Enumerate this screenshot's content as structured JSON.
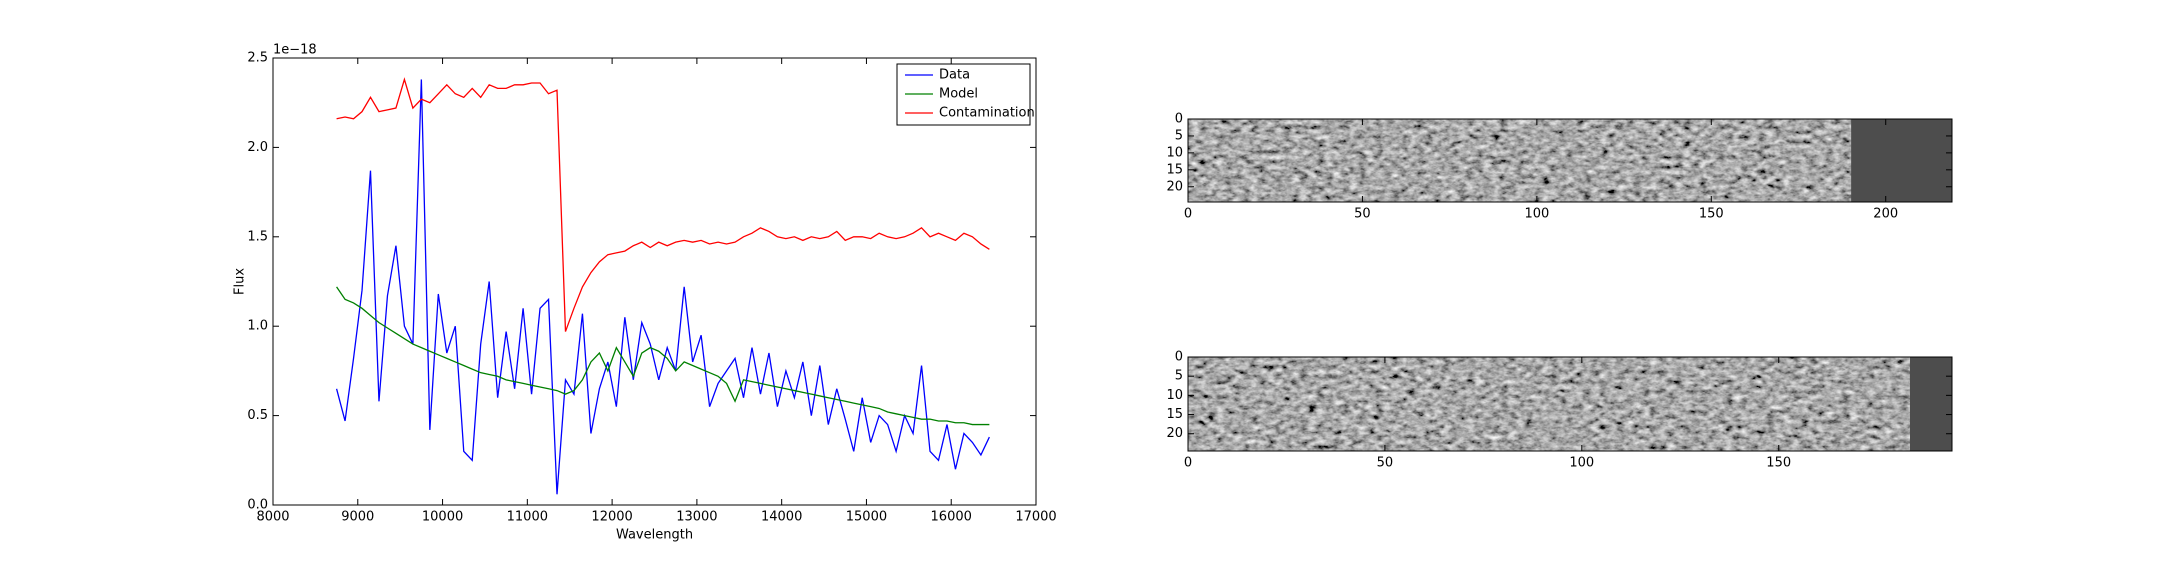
{
  "chart_data": [
    {
      "type": "line",
      "xlabel": "Wavelength",
      "ylabel": "Flux",
      "y_multiplier": "1e−18",
      "x": [
        8750,
        8850,
        8950,
        9050,
        9150,
        9250,
        9350,
        9450,
        9550,
        9650,
        9750,
        9850,
        9950,
        10050,
        10150,
        10250,
        10350,
        10450,
        10550,
        10650,
        10750,
        10850,
        10950,
        11050,
        11150,
        11250,
        11350,
        11450,
        11550,
        11650,
        11750,
        11850,
        11950,
        12050,
        12150,
        12250,
        12350,
        12450,
        12550,
        12650,
        12750,
        12850,
        12950,
        13050,
        13150,
        13250,
        13350,
        13450,
        13550,
        13650,
        13750,
        13850,
        13950,
        14050,
        14150,
        14250,
        14350,
        14450,
        14550,
        14650,
        14750,
        14850,
        14950,
        15050,
        15150,
        15250,
        15350,
        15450,
        15550,
        15650,
        15750,
        15850,
        15950,
        16050,
        16150,
        16250,
        16350,
        16450
      ],
      "series": [
        {
          "name": "Data",
          "color": "#0000ff",
          "values": [
            0.65,
            0.47,
            0.82,
            1.2,
            1.87,
            0.58,
            1.17,
            1.45,
            1.0,
            0.9,
            2.38,
            0.42,
            1.18,
            0.85,
            1.0,
            0.3,
            0.25,
            0.9,
            1.25,
            0.6,
            0.97,
            0.65,
            1.1,
            0.62,
            1.1,
            1.15,
            0.06,
            0.7,
            0.62,
            1.07,
            0.4,
            0.65,
            0.8,
            0.55,
            1.05,
            0.7,
            1.02,
            0.9,
            0.7,
            0.88,
            0.75,
            1.22,
            0.8,
            0.95,
            0.55,
            0.68,
            0.75,
            0.82,
            0.6,
            0.88,
            0.62,
            0.85,
            0.55,
            0.75,
            0.6,
            0.8,
            0.5,
            0.78,
            0.45,
            0.65,
            0.48,
            0.3,
            0.6,
            0.35,
            0.5,
            0.45,
            0.3,
            0.5,
            0.4,
            0.78,
            0.3,
            0.25,
            0.45,
            0.2,
            0.4,
            0.35,
            0.28,
            0.38
          ]
        },
        {
          "name": "Model",
          "color": "#008000",
          "values": [
            1.22,
            1.15,
            1.13,
            1.1,
            1.06,
            1.02,
            0.99,
            0.96,
            0.93,
            0.9,
            0.88,
            0.86,
            0.84,
            0.82,
            0.8,
            0.78,
            0.76,
            0.74,
            0.73,
            0.72,
            0.7,
            0.69,
            0.68,
            0.67,
            0.66,
            0.65,
            0.64,
            0.62,
            0.64,
            0.7,
            0.8,
            0.85,
            0.75,
            0.88,
            0.8,
            0.72,
            0.85,
            0.88,
            0.86,
            0.82,
            0.75,
            0.8,
            0.78,
            0.76,
            0.74,
            0.72,
            0.68,
            0.58,
            0.7,
            0.69,
            0.68,
            0.67,
            0.66,
            0.65,
            0.64,
            0.63,
            0.62,
            0.61,
            0.6,
            0.59,
            0.58,
            0.57,
            0.56,
            0.55,
            0.54,
            0.52,
            0.51,
            0.5,
            0.49,
            0.48,
            0.48,
            0.47,
            0.47,
            0.46,
            0.46,
            0.45,
            0.45,
            0.45
          ]
        },
        {
          "name": "Contamination",
          "color": "#ff0000",
          "values": [
            2.16,
            2.17,
            2.16,
            2.2,
            2.28,
            2.2,
            2.21,
            2.22,
            2.38,
            2.22,
            2.27,
            2.25,
            2.3,
            2.35,
            2.3,
            2.28,
            2.33,
            2.28,
            2.35,
            2.33,
            2.33,
            2.35,
            2.35,
            2.36,
            2.36,
            2.3,
            2.32,
            0.97,
            1.1,
            1.22,
            1.3,
            1.36,
            1.4,
            1.41,
            1.42,
            1.45,
            1.47,
            1.44,
            1.47,
            1.45,
            1.47,
            1.48,
            1.47,
            1.48,
            1.46,
            1.47,
            1.46,
            1.47,
            1.5,
            1.52,
            1.55,
            1.53,
            1.5,
            1.49,
            1.5,
            1.48,
            1.5,
            1.49,
            1.5,
            1.53,
            1.48,
            1.5,
            1.5,
            1.49,
            1.52,
            1.5,
            1.49,
            1.5,
            1.52,
            1.55,
            1.5,
            1.52,
            1.5,
            1.48,
            1.52,
            1.5,
            1.46,
            1.43
          ]
        }
      ],
      "xlim": [
        8000,
        17000
      ],
      "xticks": [
        8000,
        9000,
        10000,
        11000,
        12000,
        13000,
        14000,
        15000,
        16000,
        17000
      ],
      "ylim": [
        0,
        2.5
      ],
      "yticks": [
        {
          "value": 0,
          "label": "0.0"
        },
        {
          "value": 0.5,
          "label": "0.5"
        },
        {
          "value": 1,
          "label": "1.0"
        },
        {
          "value": 1.5,
          "label": "1.5"
        },
        {
          "value": 2,
          "label": "2.0"
        },
        {
          "value": 2.5,
          "label": "2.5"
        }
      ],
      "legend": "upper right"
    },
    {
      "type": "image",
      "xlim": [
        0,
        219
      ],
      "xticks": [
        0,
        50,
        100,
        150,
        200
      ],
      "ylim": [
        24.5,
        0
      ],
      "yticks": [
        0,
        5,
        10,
        15,
        20
      ]
    },
    {
      "type": "image",
      "xlim": [
        0,
        194
      ],
      "xticks": [
        0,
        50,
        100,
        150
      ],
      "ylim": [
        24.5,
        0
      ],
      "yticks": [
        0,
        5,
        10,
        15,
        20
      ]
    }
  ]
}
